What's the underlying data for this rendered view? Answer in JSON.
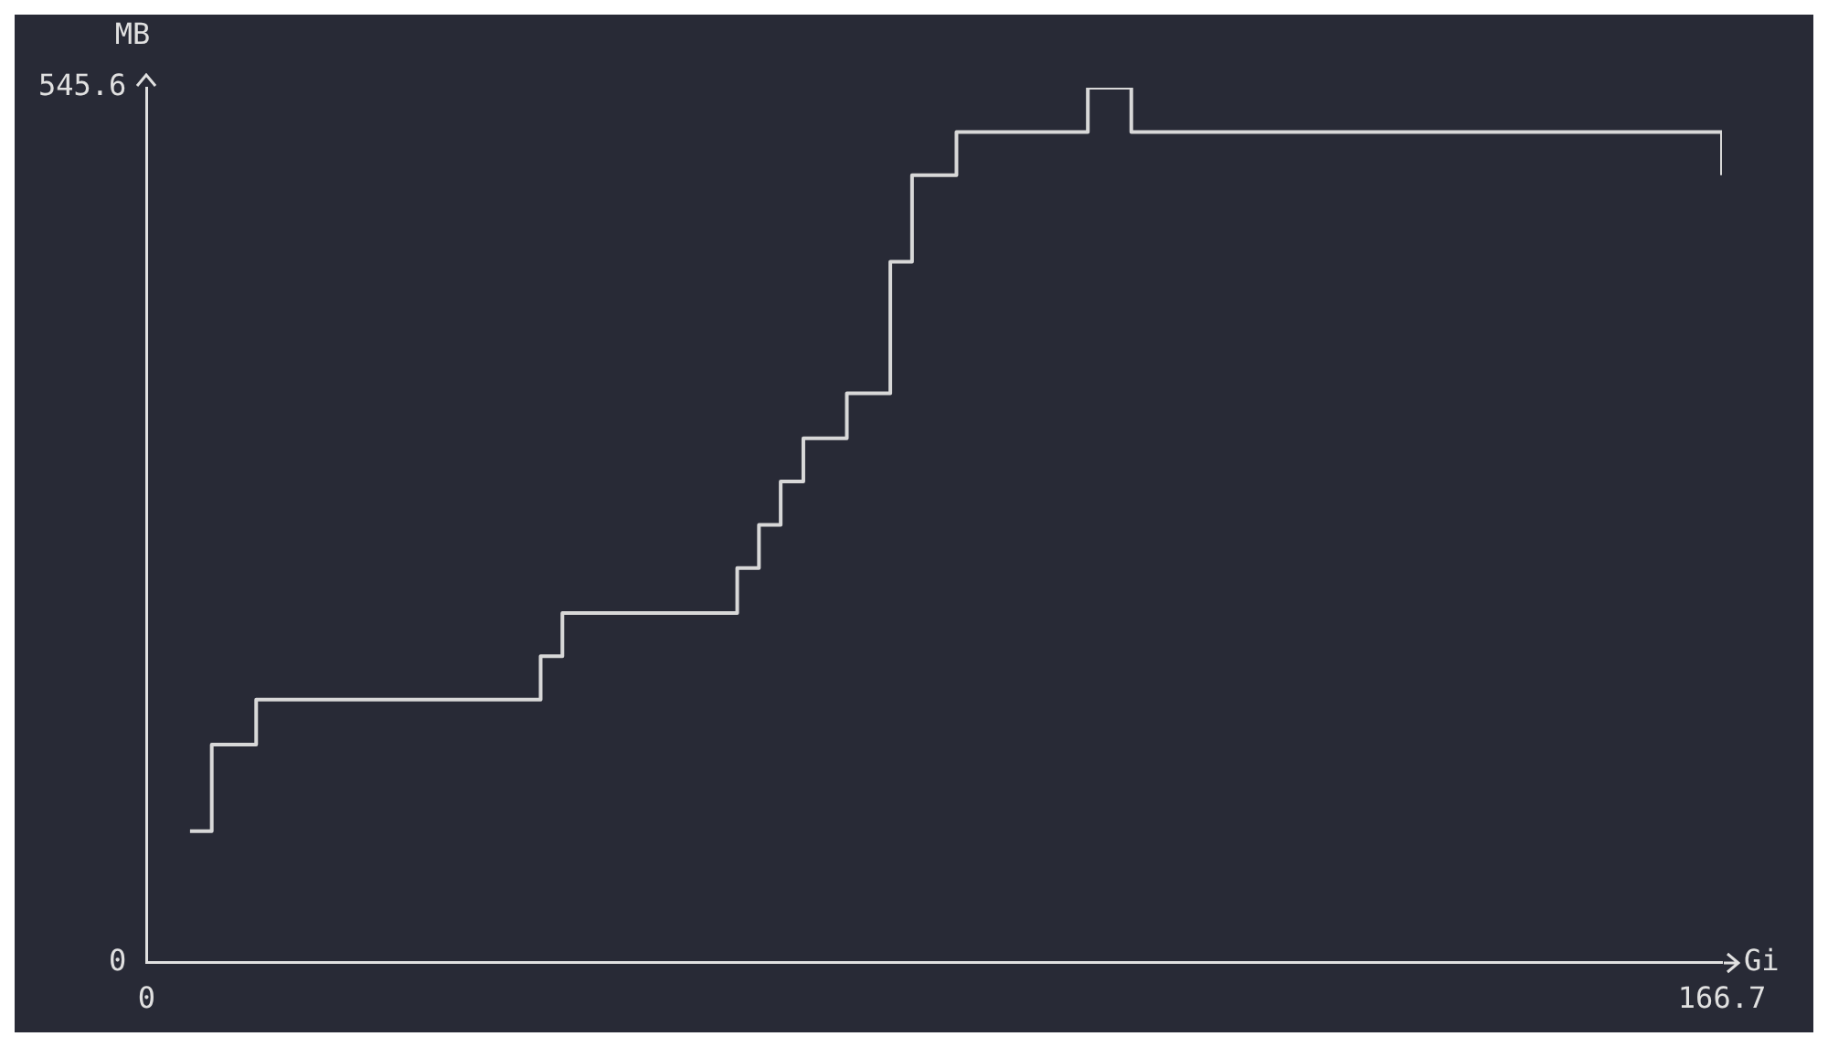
{
  "chart_data": {
    "type": "step",
    "xlabel": "Gi",
    "ylabel": "MB",
    "x": [
      4.6,
      6.9,
      9.3,
      11.6,
      13.9,
      16.2,
      18.5,
      23.2,
      25.5,
      27.8,
      32.4,
      34.7,
      39.4,
      41.7,
      44.0,
      48.6,
      53.3,
      57.9,
      60.2,
      62.5,
      64.8,
      67.1,
      69.5,
      74.1,
      76.4,
      78.7,
      81.0,
      85.7,
      90.3,
      94.9,
      97.2,
      99.6,
      104.2,
      106.5,
      108.8,
      113.4,
      115.8,
      122.7,
      125.0,
      127.3,
      129.7,
      134.3,
      136.6,
      141.2,
      145.9,
      148.2,
      150.5,
      155.1,
      162.1,
      164.4,
      166.7
    ],
    "series": [
      {
        "color": "#d8d8d8",
        "values": [
          82,
          136,
          136,
          164,
          164,
          164,
          164,
          164,
          164,
          164,
          164,
          164,
          164,
          191,
          218,
          218,
          218,
          218,
          218,
          246,
          273,
          300,
          327,
          355,
          355,
          437,
          491,
          518,
          518,
          518,
          518,
          545.6,
          518,
          518,
          518,
          518,
          518,
          518,
          518,
          518,
          518,
          518,
          518,
          518,
          518,
          518,
          518,
          518,
          518,
          518,
          491
        ]
      }
    ],
    "xlim": [
      0,
      166.7
    ],
    "xticks": [
      0,
      166.7
    ],
    "ylim": [
      0,
      545.6
    ],
    "yticks": [
      0,
      545.6
    ],
    "grid": false,
    "legend": false,
    "marker": "none"
  }
}
